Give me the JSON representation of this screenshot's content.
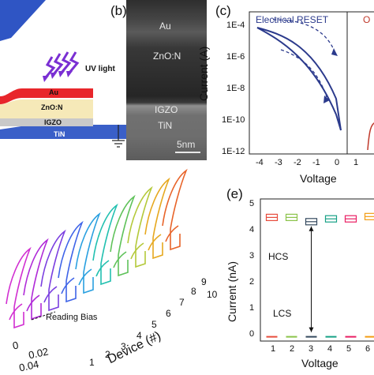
{
  "panel_a": {
    "uv_label": "UV light",
    "layers": [
      "Au",
      "ZnO:N",
      "IGZO",
      "TiN"
    ]
  },
  "panel_b": {
    "label": "(b)",
    "layers": [
      "Au",
      "ZnO:N",
      "IGZO",
      "TiN"
    ],
    "scale_bar": "5nm"
  },
  "panel_c": {
    "label": "(c)",
    "legend_electrical": "Electrical RESET",
    "legend_optical_partial": "O",
    "y_title": "Current (A)",
    "x_title": "Voltage",
    "y_ticks": [
      "1E-4",
      "1E-6",
      "1E-8",
      "1E-10",
      "1E-12"
    ],
    "x_ticks": [
      "-4",
      "-3",
      "-2",
      "-1",
      "0",
      "1"
    ],
    "colors": {
      "curve": "#2b3a8c",
      "optical": "#c0392b"
    }
  },
  "panel_d": {
    "annotation": "Reading Bias",
    "x_title": "Device (#)",
    "device_ticks": [
      "1",
      "2",
      "3",
      "4",
      "5",
      "6",
      "7",
      "8",
      "9",
      "10"
    ],
    "axis_ticks": [
      "0",
      "0.02",
      "0.04"
    ]
  },
  "panel_e": {
    "label": "(e)",
    "y_title": "Current (nA)",
    "x_title": "Voltage",
    "y_ticks": [
      "5",
      "4",
      "3",
      "2",
      "1",
      "0"
    ],
    "x_ticks": [
      "1",
      "2",
      "3",
      "4",
      "5",
      "6"
    ],
    "hcs_label": "HCS",
    "lcs_label": "LCS"
  },
  "chart_data": [
    {
      "type": "line",
      "panel": "c",
      "title": "",
      "xlabel": "Voltage",
      "ylabel": "Current (A)",
      "ylog": true,
      "xlim": [
        -4,
        1
      ],
      "ylim": [
        1e-12,
        0.001
      ],
      "series": [
        {
          "name": "Electrical RESET",
          "x": [
            -3.8,
            -3,
            -2,
            -1,
            -0.3,
            0
          ],
          "y": [
            8e-05,
            3e-05,
            8e-06,
            1e-06,
            1e-07,
            1e-08
          ]
        }
      ]
    },
    {
      "type": "box",
      "panel": "e",
      "xlabel": "Voltage",
      "ylabel": "Current (nA)",
      "ylim": [
        0,
        5
      ],
      "categories": [
        "1",
        "2",
        "3",
        "4",
        "5",
        "6"
      ],
      "series": [
        {
          "name": "HCS",
          "values": [
            4.35,
            4.35,
            4.2,
            4.3,
            4.3,
            4.38
          ]
        },
        {
          "name": "LCS",
          "values": [
            0.15,
            0.15,
            0.15,
            0.15,
            0.15,
            0.15
          ]
        }
      ],
      "colors": [
        "#e74c3c",
        "#8bc34a",
        "#34495e",
        "#16a085",
        "#e91e63",
        "#f39c12"
      ]
    }
  ]
}
